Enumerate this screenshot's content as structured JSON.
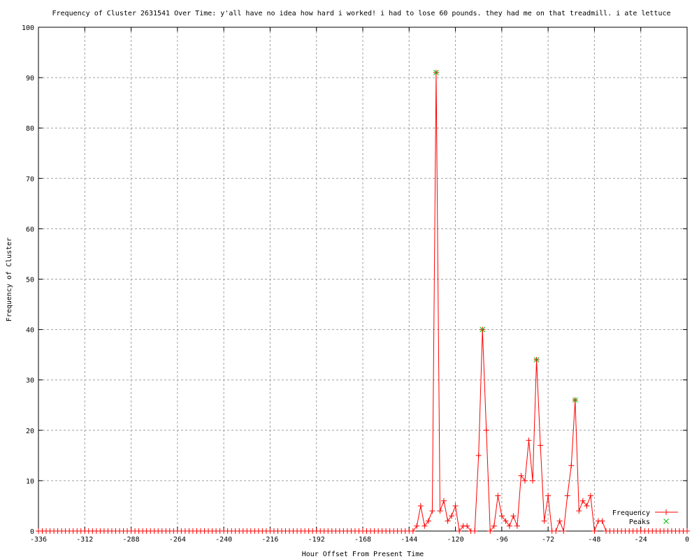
{
  "chart_data": {
    "type": "line",
    "title": "Frequency of Cluster 2631541 Over Time: y'all have no idea how hard i worked! i had to lose 60 pounds. they had me on that treadmill. i ate lettuce",
    "xlabel": "Hour Offset From Present Time",
    "ylabel": "Frequency of Cluster",
    "xlim": [
      -336,
      0
    ],
    "ylim": [
      0,
      100
    ],
    "xticks": [
      -336,
      -312,
      -288,
      -264,
      -240,
      -216,
      -192,
      -168,
      -144,
      -120,
      -96,
      -72,
      -48,
      -24,
      0
    ],
    "yticks": [
      0,
      10,
      20,
      30,
      40,
      50,
      60,
      70,
      80,
      90,
      100
    ],
    "grid": true,
    "legend_position": "bottom-right",
    "x_step": 2,
    "nonzero_points": {
      "-140": 1,
      "-138": 5,
      "-136": 1,
      "-134": 2,
      "-132": 4,
      "-130": 91,
      "-128": 4,
      "-126": 6,
      "-124": 2,
      "-122": 3,
      "-120": 5,
      "-116": 1,
      "-114": 1,
      "-108": 15,
      "-106": 40,
      "-104": 20,
      "-100": 1,
      "-98": 7,
      "-96": 3,
      "-94": 2,
      "-92": 1,
      "-90": 3,
      "-88": 1,
      "-86": 11,
      "-84": 10,
      "-82": 18,
      "-80": 10,
      "-78": 34,
      "-76": 17,
      "-74": 2,
      "-72": 7,
      "-66": 2,
      "-62": 7,
      "-60": 13,
      "-58": 26,
      "-56": 4,
      "-54": 6,
      "-52": 5,
      "-50": 7,
      "-46": 2,
      "-44": 2
    },
    "series": [
      {
        "name": "Frequency",
        "color": "#ff0000",
        "style": "linespoints",
        "marker": "plus"
      },
      {
        "name": "Peaks",
        "color": "#00c000",
        "style": "points",
        "marker": "cross",
        "x": [
          -130,
          -106,
          -78,
          -58
        ],
        "y": [
          91,
          40,
          34,
          26
        ]
      }
    ]
  }
}
